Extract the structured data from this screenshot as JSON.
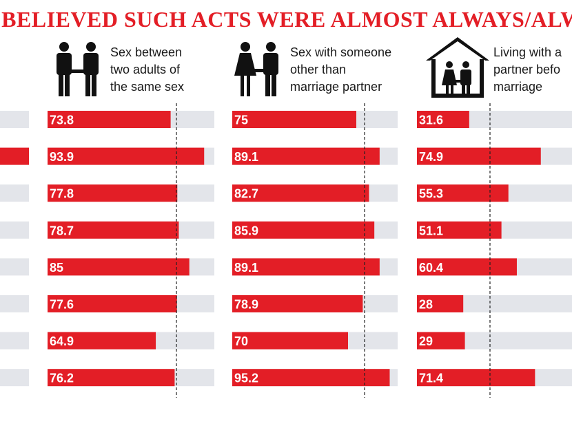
{
  "title": "D BELIEVED SUCH ACTS WERE ALMOST ALWAYS/ALWA",
  "columns": [
    {
      "label_lines": [
        "Sex between",
        "two adults of",
        "the same sex"
      ],
      "icon": "same-sex-couple-icon"
    },
    {
      "label_lines": [
        "Sex with someone",
        "other than",
        "marriage partner"
      ],
      "icon": "woman-man-couple-icon"
    },
    {
      "label_lines": [
        "Living with a",
        "partner befo",
        "marriage"
      ],
      "icon": "couple-in-house-icon"
    }
  ],
  "colors": {
    "accent": "#e31e26",
    "track": "#e3e5ea",
    "text": "#1a1a1a"
  },
  "chart_data": {
    "type": "bar",
    "orientation": "horizontal",
    "xlim": [
      0,
      100
    ],
    "rows": 8,
    "series": [
      {
        "values": [
          73.8,
          93.9,
          77.8,
          78.7,
          85,
          77.6,
          64.9,
          76.2
        ]
      },
      {
        "values": [
          75,
          89.1,
          82.7,
          85.9,
          89.1,
          78.9,
          70,
          95.2
        ]
      },
      {
        "values": [
          31.6,
          74.9,
          55.3,
          51.1,
          60.4,
          28,
          29,
          71.4
        ]
      }
    ],
    "partial_first_column_values": [
      null,
      100,
      null,
      null,
      null,
      null,
      null,
      null
    ],
    "reference_line": "dashed vertical average marker per panel",
    "grid": false,
    "legend": "none"
  }
}
